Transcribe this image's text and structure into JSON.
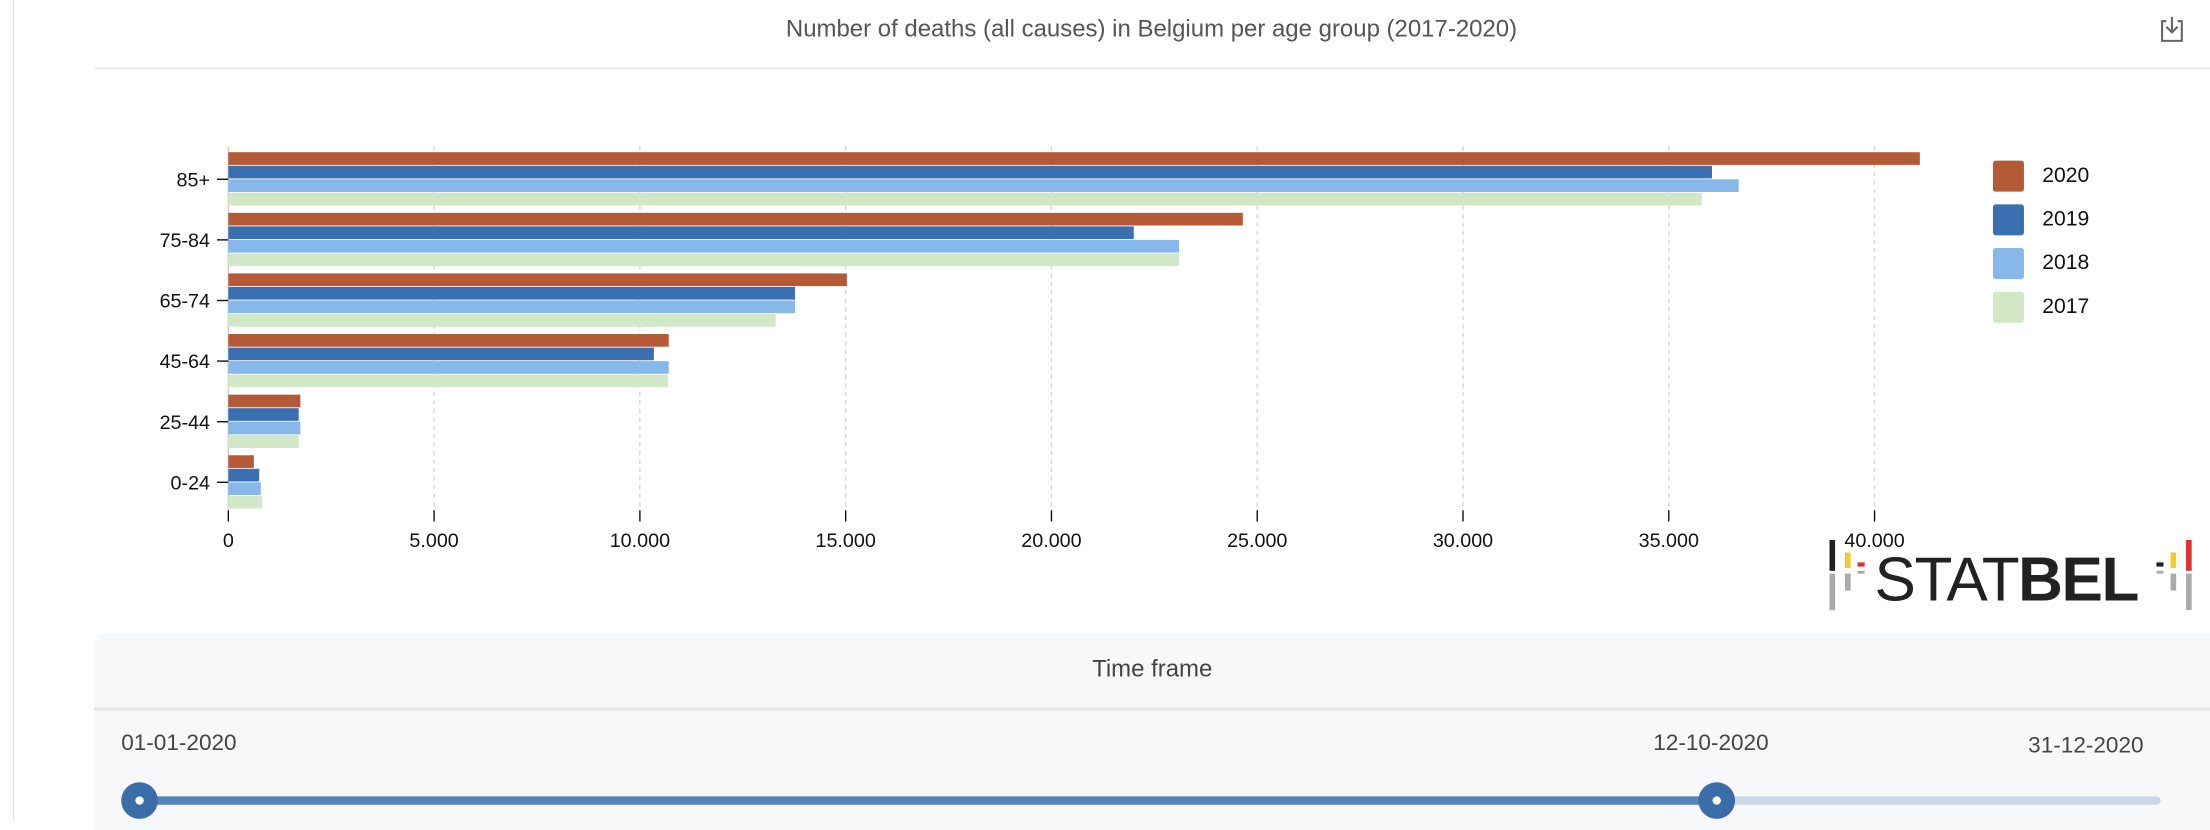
{
  "header": {
    "title": "Number of deaths (all causes) in Belgium per age group (2017-2020)",
    "download_icon": "download-icon"
  },
  "chart_data": {
    "type": "bar",
    "orientation": "horizontal",
    "title": "Number of deaths (all causes) in Belgium per age group (2017-2020)",
    "categories": [
      "85+",
      "75-84",
      "65-74",
      "45-64",
      "25-44",
      "0-24"
    ],
    "series": [
      {
        "name": "2020",
        "color": "#b55a37",
        "values": [
          41100,
          24650,
          15030,
          10700,
          1750,
          620
        ]
      },
      {
        "name": "2019",
        "color": "#3a70b0",
        "values": [
          36050,
          22000,
          13770,
          10340,
          1710,
          750
        ]
      },
      {
        "name": "2018",
        "color": "#86b8ea",
        "values": [
          36700,
          23100,
          13770,
          10700,
          1750,
          790
        ]
      },
      {
        "name": "2017",
        "color": "#d0e8c5",
        "values": [
          35800,
          23100,
          13300,
          10680,
          1710,
          820
        ]
      }
    ],
    "xlim": [
      0,
      40000
    ],
    "xticks": [
      0,
      5000,
      10000,
      15000,
      20000,
      25000,
      30000,
      35000,
      40000
    ],
    "xtick_labels": [
      "0",
      "5.000",
      "10.000",
      "15.000",
      "20.000",
      "25.000",
      "30.000",
      "35.000",
      "40.000"
    ],
    "grid": true,
    "legend_placement": "right",
    "xlabel": "",
    "ylabel": ""
  },
  "logo": {
    "text": "STATBEL"
  },
  "timeframe": {
    "title": "Time frame",
    "start": "01-01-2020",
    "selected": "12-10-2020",
    "end": "31-12-2020",
    "selected_fraction": 0.78
  }
}
